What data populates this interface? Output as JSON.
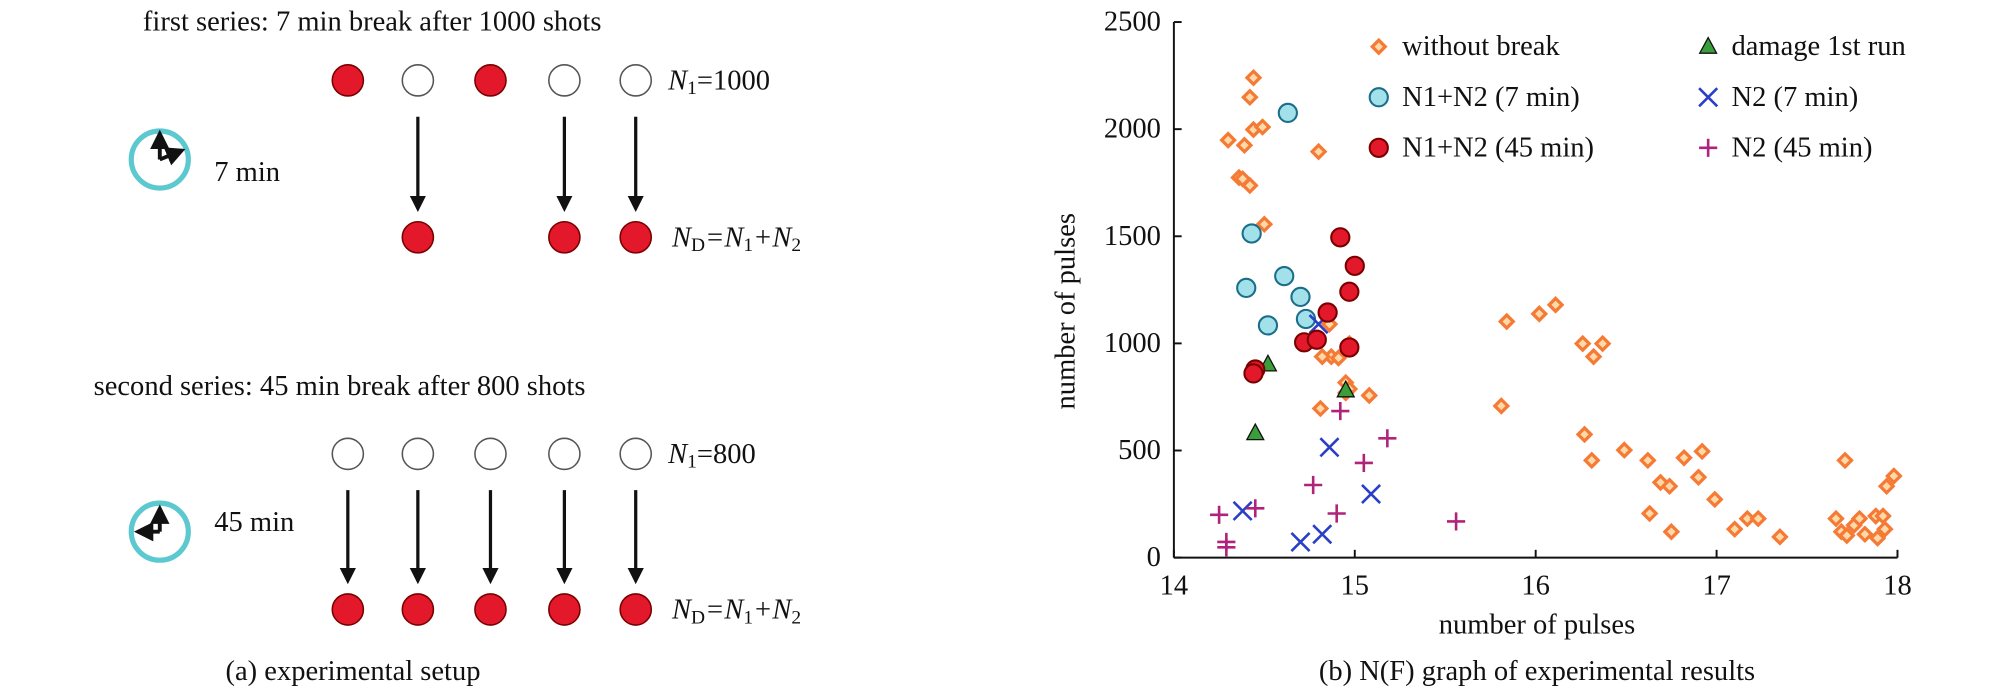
{
  "diagram": {
    "caption": "(a) experimental setup",
    "series": [
      {
        "title": "first series: 7 min break after 1000 shots",
        "break": "7 min",
        "n1_label": [
          "N",
          "1",
          "=1000"
        ],
        "nd_label": [
          "N",
          "D",
          "=N",
          "1",
          "+N",
          "2"
        ]
      },
      {
        "title": "second series: 45 min break after 800 shots",
        "break": "45 min",
        "n1_label": [
          "N",
          "1",
          "=800"
        ],
        "nd_label": [
          "N",
          "D",
          "=N",
          "1",
          "+N",
          "2"
        ]
      }
    ]
  },
  "chart_data": {
    "type": "scatter",
    "caption": "(b) N(F) graph of experimental results",
    "xlabel": "number of pulses",
    "ylabel": "number of pulses",
    "xlim": [
      14,
      18
    ],
    "xticks": [
      14,
      15,
      16,
      17,
      18
    ],
    "ylim": [
      0,
      2500
    ],
    "yticks": [
      0,
      500,
      1000,
      1500,
      2000,
      2500
    ],
    "series": [
      {
        "name": "without break",
        "marker": "diamond",
        "color": "#f57a35",
        "x": [
          14.44,
          14.42,
          14.44,
          14.49,
          14.3,
          14.39,
          14.36,
          14.38,
          14.42,
          14.8,
          14.5,
          14.86,
          14.87,
          14.82,
          14.91,
          14.95,
          14.97,
          14.95,
          15.08,
          14.81,
          14.97,
          15.81,
          15.84,
          16.02,
          16.11,
          16.26,
          16.32,
          16.37,
          16.27,
          16.31,
          16.49,
          16.62,
          16.63,
          16.69,
          16.74,
          16.75,
          16.82,
          16.92,
          16.9,
          16.99,
          17.1,
          17.17,
          17.23,
          17.35,
          17.71,
          17.66,
          17.69,
          17.72,
          17.76,
          17.79,
          17.88,
          17.92,
          17.82,
          17.89,
          17.93,
          17.94,
          17.98
        ],
        "values": [
          2240,
          2149,
          1998,
          2010,
          1949,
          1925,
          1774,
          1768,
          1737,
          1895,
          1556,
          1090,
          938,
          938,
          932,
          817,
          787,
          769,
          757,
          696,
          999,
          708,
          1102,
          1138,
          1180,
          999,
          938,
          999,
          575,
          454,
          502,
          454,
          206,
          351,
          333,
          121,
          466,
          496,
          375,
          272,
          133,
          182,
          182,
          97,
          454,
          182,
          121,
          103,
          151,
          182,
          194,
          194,
          109,
          91,
          133,
          333,
          381
        ]
      },
      {
        "name": "damage 1st run",
        "marker": "triangle",
        "color": "#3a9e3a",
        "x": [
          14.52,
          14.45,
          14.95
        ],
        "values": [
          902,
          581,
          781
        ]
      },
      {
        "name": "N1+N2 (7 min)",
        "marker": "circle",
        "color": "#a3e1ea",
        "x": [
          14.63,
          14.43,
          14.4,
          14.61,
          14.52,
          14.7,
          14.73
        ],
        "values": [
          2076,
          1513,
          1259,
          1314,
          1084,
          1217,
          1114
        ]
      },
      {
        "name": "N2 (7 min)",
        "marker": "cross",
        "color": "#2a3fc7",
        "x": [
          14.8,
          14.86,
          14.38,
          14.7,
          14.82,
          15.09
        ],
        "values": [
          1090,
          515,
          218,
          73,
          109,
          297
        ]
      },
      {
        "name": "N1+N2 (45 min)",
        "marker": "circle",
        "color": "#e3192b",
        "x": [
          14.92,
          15.0,
          14.97,
          14.85,
          14.72,
          14.79,
          14.45,
          14.44,
          14.97
        ],
        "values": [
          1495,
          1362,
          1241,
          1144,
          1005,
          1017,
          878,
          860,
          981
        ]
      },
      {
        "name": "N2 (45 min)",
        "marker": "plus",
        "color": "#b0237a",
        "x": [
          14.25,
          14.29,
          14.29,
          14.45,
          14.77,
          14.92,
          14.9,
          15.05,
          15.18,
          15.56
        ],
        "values": [
          200,
          73,
          48,
          230,
          339,
          684,
          206,
          442,
          557,
          169
        ]
      }
    ]
  }
}
